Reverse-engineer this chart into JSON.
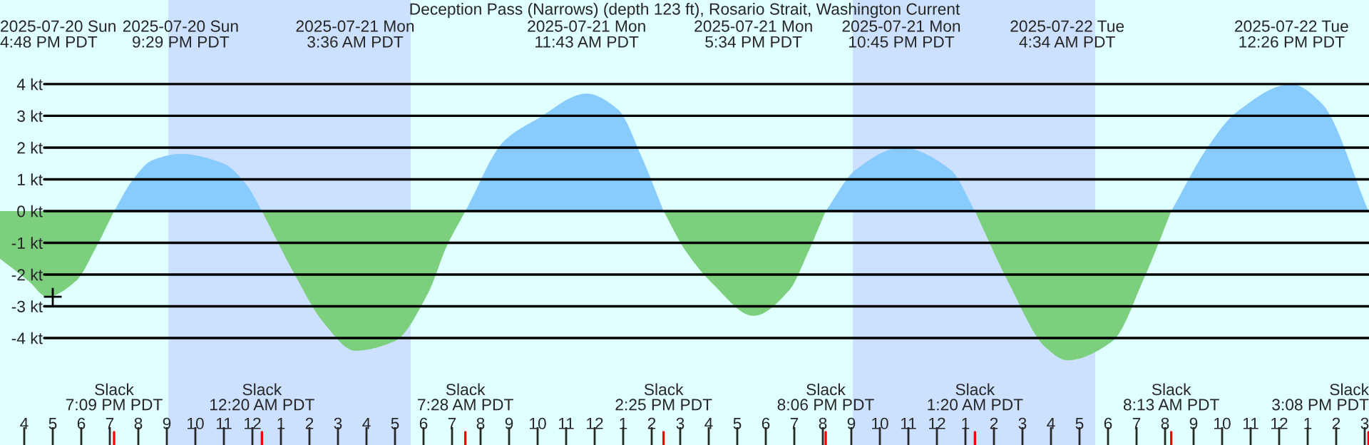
{
  "chart_data": {
    "type": "area",
    "title": "Deception Pass (Narrows) (depth 123 ft), Rosario Strait, Washington Current",
    "xlim": [
      "2025-07-20T15:09",
      "2025-07-22T15:09"
    ],
    "ylim": [
      -7.37,
      6.65
    ],
    "yticks": [
      {
        "value": -4,
        "label": "-4 kt"
      },
      {
        "value": -3,
        "label": "-3 kt"
      },
      {
        "value": -2,
        "label": "-2 kt"
      },
      {
        "value": -1,
        "label": "-1 kt"
      },
      {
        "value": 0,
        "label": "0 kt"
      },
      {
        "value": 1,
        "label": "1 kt"
      },
      {
        "value": 2,
        "label": "2 kt"
      },
      {
        "value": 3,
        "label": "3 kt"
      },
      {
        "value": 4,
        "label": "4 kt"
      }
    ],
    "xticks": [
      {
        "value": "2025-07-20T16:00",
        "label": "4"
      },
      {
        "value": "2025-07-20T17:00",
        "label": "5"
      },
      {
        "value": "2025-07-20T18:00",
        "label": "6"
      },
      {
        "value": "2025-07-20T19:00",
        "label": "7"
      },
      {
        "value": "2025-07-20T20:00",
        "label": "8"
      },
      {
        "value": "2025-07-20T21:00",
        "label": "9"
      },
      {
        "value": "2025-07-20T22:00",
        "label": "10"
      },
      {
        "value": "2025-07-20T23:00",
        "label": "11"
      },
      {
        "value": "2025-07-21T00:00",
        "label": "12"
      },
      {
        "value": "2025-07-21T01:00",
        "label": "1"
      },
      {
        "value": "2025-07-21T02:00",
        "label": "2"
      },
      {
        "value": "2025-07-21T03:00",
        "label": "3"
      },
      {
        "value": "2025-07-21T04:00",
        "label": "4"
      },
      {
        "value": "2025-07-21T05:00",
        "label": "5"
      },
      {
        "value": "2025-07-21T06:00",
        "label": "6"
      },
      {
        "value": "2025-07-21T07:00",
        "label": "7"
      },
      {
        "value": "2025-07-21T08:00",
        "label": "8"
      },
      {
        "value": "2025-07-21T09:00",
        "label": "9"
      },
      {
        "value": "2025-07-21T10:00",
        "label": "10"
      },
      {
        "value": "2025-07-21T11:00",
        "label": "11"
      },
      {
        "value": "2025-07-21T12:00",
        "label": "12"
      },
      {
        "value": "2025-07-21T13:00",
        "label": "1"
      },
      {
        "value": "2025-07-21T14:00",
        "label": "2"
      },
      {
        "value": "2025-07-21T15:00",
        "label": "3"
      },
      {
        "value": "2025-07-21T16:00",
        "label": "4"
      },
      {
        "value": "2025-07-21T17:00",
        "label": "5"
      },
      {
        "value": "2025-07-21T18:00",
        "label": "6"
      },
      {
        "value": "2025-07-21T19:00",
        "label": "7"
      },
      {
        "value": "2025-07-21T20:00",
        "label": "8"
      },
      {
        "value": "2025-07-21T21:00",
        "label": "9"
      },
      {
        "value": "2025-07-21T22:00",
        "label": "10"
      },
      {
        "value": "2025-07-21T23:00",
        "label": "11"
      },
      {
        "value": "2025-07-22T00:00",
        "label": "12"
      },
      {
        "value": "2025-07-22T01:00",
        "label": "1"
      },
      {
        "value": "2025-07-22T02:00",
        "label": "2"
      },
      {
        "value": "2025-07-22T03:00",
        "label": "3"
      },
      {
        "value": "2025-07-22T04:00",
        "label": "4"
      },
      {
        "value": "2025-07-22T05:00",
        "label": "5"
      },
      {
        "value": "2025-07-22T06:00",
        "label": "6"
      },
      {
        "value": "2025-07-22T07:00",
        "label": "7"
      },
      {
        "value": "2025-07-22T08:00",
        "label": "8"
      },
      {
        "value": "2025-07-22T09:00",
        "label": "9"
      },
      {
        "value": "2025-07-22T10:00",
        "label": "10"
      },
      {
        "value": "2025-07-22T11:00",
        "label": "11"
      },
      {
        "value": "2025-07-22T12:00",
        "label": "12"
      },
      {
        "value": "2025-07-22T13:00",
        "label": "1"
      },
      {
        "value": "2025-07-22T14:00",
        "label": "2"
      },
      {
        "value": "2025-07-22T15:00",
        "label": "3"
      }
    ],
    "grid": "y",
    "legend": false,
    "bands": [
      {
        "axis": "x",
        "from": "2025-07-20T21:03",
        "to": "2025-07-21T05:33",
        "color": "#cce0ff"
      },
      {
        "axis": "x",
        "from": "2025-07-21T21:03",
        "to": "2025-07-22T05:33",
        "color": "#cce0ff"
      }
    ],
    "series": [
      {
        "color": "#7ccf7c",
        "x": [
          "2025-07-20T15:09",
          "2025-07-20T16:09",
          "2025-07-20T16:48",
          "2025-07-20T17:49",
          "2025-07-20T18:29",
          "2025-07-20T19:09",
          "2025-07-20T21:30",
          "2025-07-21T00:20",
          "2025-07-21T01:29",
          "2025-07-21T02:29",
          "2025-07-21T03:36",
          "2025-07-21T04:59",
          "2025-07-21T06:09",
          "2025-07-21T06:49",
          "2025-07-21T07:28",
          "2025-07-21T11:00",
          "2025-07-21T14:25",
          "2025-07-21T15:09",
          "2025-07-21T16:09",
          "2025-07-21T17:34",
          "2025-07-21T18:49",
          "2025-07-21T19:29",
          "2025-07-21T20:06",
          "2025-07-21T22:45",
          "2025-07-22T01:20",
          "2025-07-22T02:29",
          "2025-07-22T03:49",
          "2025-07-22T04:34",
          "2025-07-22T06:09",
          "2025-07-22T07:19",
          "2025-07-22T08:13"
        ],
        "values": [
          -1.5,
          -2.2,
          -2.7,
          -2.2,
          -1.2,
          0,
          null,
          0,
          -2.0,
          -3.5,
          -4.4,
          -4.1,
          -2.6,
          -1.1,
          0,
          null,
          0,
          -1.2,
          -2.3,
          -3.3,
          -2.5,
          -1.3,
          0,
          null,
          0,
          -2.2,
          -4.3,
          -4.7,
          -4.1,
          -2.0,
          0
        ]
      },
      {
        "color": "#88ccff",
        "x": [
          "2025-07-20T19:09",
          "2025-07-20T19:49",
          "2025-07-20T20:29",
          "2025-07-20T21:29",
          "2025-07-20T22:59",
          "2025-07-20T23:49",
          "2025-07-21T00:20",
          "2025-07-21T03:36",
          "2025-07-21T07:28",
          "2025-07-21T08:49",
          "2025-07-21T09:59",
          "2025-07-21T11:43",
          "2025-07-21T12:49",
          "2025-07-21T13:39",
          "2025-07-21T14:25",
          "2025-07-21T17:34",
          "2025-07-21T20:06",
          "2025-07-21T21:09",
          "2025-07-21T22:45",
          "2025-07-22T00:29",
          "2025-07-22T01:20",
          "2025-07-22T04:34",
          "2025-07-22T08:13",
          "2025-07-22T09:29",
          "2025-07-22T10:29",
          "2025-07-22T12:26",
          "2025-07-22T13:29",
          "2025-07-22T15:08"
        ],
        "values": [
          0,
          1.0,
          1.6,
          1.8,
          1.5,
          0.8,
          0,
          null,
          0,
          2.2,
          2.9,
          3.7,
          3.2,
          1.7,
          0,
          null,
          0,
          1.3,
          2.0,
          1.3,
          0,
          null,
          0,
          2.0,
          3.1,
          4.0,
          3.4,
          0
        ]
      },
      {
        "type": "scatter",
        "marker": "cross",
        "color": "#000000",
        "x": [
          "2025-07-20T17:00"
        ],
        "values": [
          -2.7
        ]
      }
    ],
    "annotations": [
      "2025-07-20 Sun\n4:48 PM PDT",
      "Slack\n7:09 PM PDT",
      "2025-07-20 Sun\n9:29 PM PDT",
      "Slack\n12:20 AM PDT",
      "2025-07-21 Mon\n3:36 AM PDT",
      "Slack\n7:28 AM PDT",
      "2025-07-21 Mon\n11:43 AM PDT",
      "Slack\n2:25 PM PDT",
      "2025-07-21 Mon\n5:34 PM PDT",
      "Slack\n8:06 PM PDT",
      "2025-07-21 Mon\n10:45 PM PDT",
      "Slack\n1:20 AM PDT",
      "2025-07-22 Tue\n4:34 AM PDT",
      "Slack\n8:13 AM PDT",
      "2025-07-22 Tue\n12:26 PM PDT",
      "Slack\n3:08 PM PDT"
    ]
  }
}
